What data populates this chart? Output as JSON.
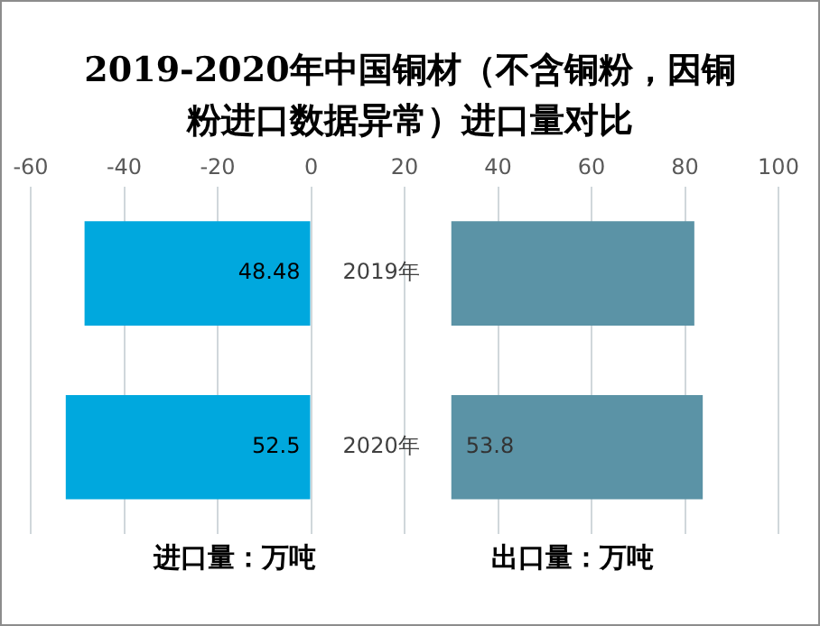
{
  "chart_data": {
    "type": "bar",
    "orientation": "horizontal",
    "title": "2019-2020年中国铜材（不含铜粉，因铜粉进口数据异常）进口量对比",
    "categories": [
      "2019年",
      "2020年"
    ],
    "series": [
      {
        "color": "#00a8de",
        "base": [
          0,
          0
        ],
        "values": [
          -48.48,
          -52.5
        ],
        "value_labels": [
          "48.48",
          "52.5"
        ]
      },
      {
        "color": "#5b93a6",
        "base": [
          30,
          30
        ],
        "values": [
          52,
          53.8
        ],
        "value_labels": [
          null,
          "53.8"
        ]
      }
    ],
    "xlim": [
      -60,
      100
    ],
    "xticks": [
      -60,
      -40,
      -20,
      0,
      20,
      40,
      60,
      80,
      100
    ],
    "grid": "x",
    "legend": false,
    "annotations": [
      "进口量：万吨",
      "出口量：万吨"
    ]
  }
}
